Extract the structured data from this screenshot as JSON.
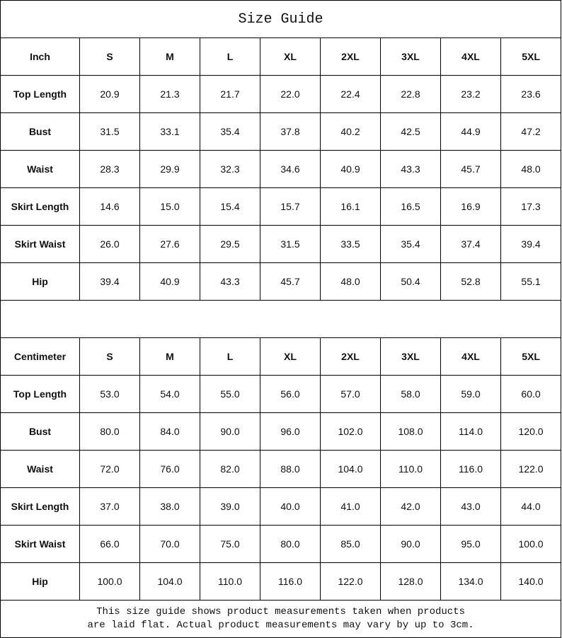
{
  "title": "Size Guide",
  "sizes": [
    "S",
    "M",
    "L",
    "XL",
    "2XL",
    "3XL",
    "4XL",
    "5XL"
  ],
  "inch": {
    "unit_label": "Inch",
    "rows": [
      {
        "label": "Top Length",
        "values": [
          "20.9",
          "21.3",
          "21.7",
          "22.0",
          "22.4",
          "22.8",
          "23.2",
          "23.6"
        ]
      },
      {
        "label": "Bust",
        "values": [
          "31.5",
          "33.1",
          "35.4",
          "37.8",
          "40.2",
          "42.5",
          "44.9",
          "47.2"
        ]
      },
      {
        "label": "Waist",
        "values": [
          "28.3",
          "29.9",
          "32.3",
          "34.6",
          "40.9",
          "43.3",
          "45.7",
          "48.0"
        ]
      },
      {
        "label": "Skirt Length",
        "values": [
          "14.6",
          "15.0",
          "15.4",
          "15.7",
          "16.1",
          "16.5",
          "16.9",
          "17.3"
        ]
      },
      {
        "label": "Skirt Waist",
        "values": [
          "26.0",
          "27.6",
          "29.5",
          "31.5",
          "33.5",
          "35.4",
          "37.4",
          "39.4"
        ]
      },
      {
        "label": "Hip",
        "values": [
          "39.4",
          "40.9",
          "43.3",
          "45.7",
          "48.0",
          "50.4",
          "52.8",
          "55.1"
        ]
      }
    ]
  },
  "cm": {
    "unit_label": "Centimeter",
    "rows": [
      {
        "label": "Top Length",
        "values": [
          "53.0",
          "54.0",
          "55.0",
          "56.0",
          "57.0",
          "58.0",
          "59.0",
          "60.0"
        ]
      },
      {
        "label": "Bust",
        "values": [
          "80.0",
          "84.0",
          "90.0",
          "96.0",
          "102.0",
          "108.0",
          "114.0",
          "120.0"
        ]
      },
      {
        "label": "Waist",
        "values": [
          "72.0",
          "76.0",
          "82.0",
          "88.0",
          "104.0",
          "110.0",
          "116.0",
          "122.0"
        ]
      },
      {
        "label": "Skirt Length",
        "values": [
          "37.0",
          "38.0",
          "39.0",
          "40.0",
          "41.0",
          "42.0",
          "43.0",
          "44.0"
        ]
      },
      {
        "label": "Skirt Waist",
        "values": [
          "66.0",
          "70.0",
          "75.0",
          "80.0",
          "85.0",
          "90.0",
          "95.0",
          "100.0"
        ]
      },
      {
        "label": "Hip",
        "values": [
          "100.0",
          "104.0",
          "110.0",
          "116.0",
          "122.0",
          "128.0",
          "134.0",
          "140.0"
        ]
      }
    ]
  },
  "note": {
    "line1": "This size guide shows product measurements taken when products",
    "line2": "are laid flat. Actual product measurements may vary by up to 3cm."
  }
}
